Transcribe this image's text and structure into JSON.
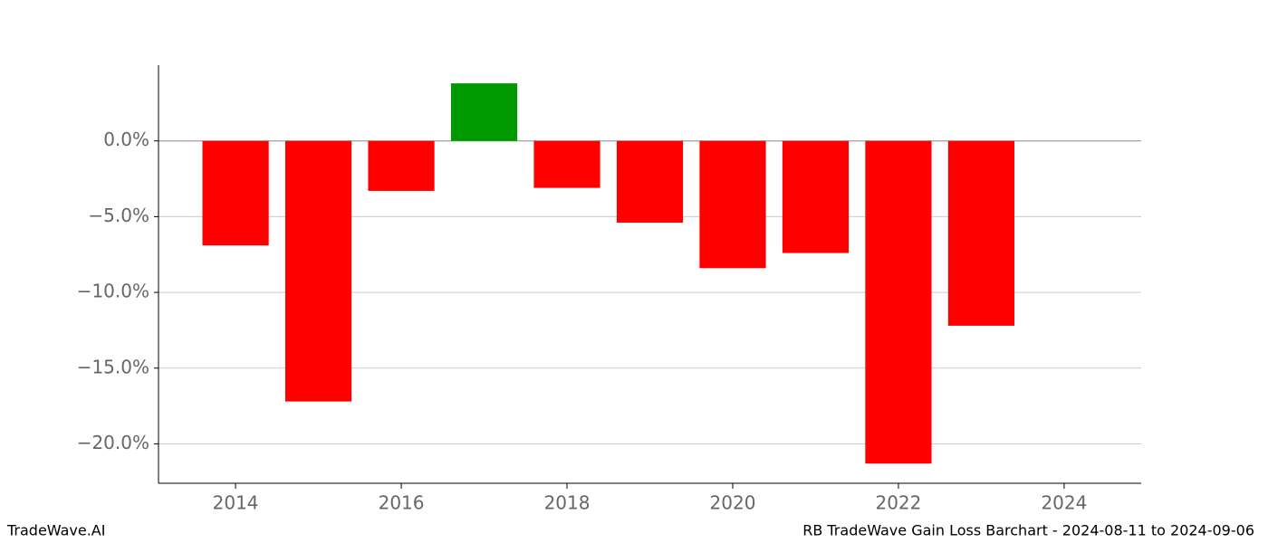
{
  "chart_data": {
    "type": "bar",
    "x": [
      2014,
      2015,
      2016,
      2017,
      2018,
      2019,
      2020,
      2021,
      2022,
      2023
    ],
    "values": [
      -6.9,
      -17.2,
      -3.3,
      3.8,
      -3.1,
      -5.4,
      -8.4,
      -7.4,
      -21.3,
      -12.2
    ],
    "colors": [
      "#ff0000",
      "#ff0000",
      "#ff0000",
      "#009900",
      "#ff0000",
      "#ff0000",
      "#ff0000",
      "#ff0000",
      "#ff0000",
      "#ff0000"
    ],
    "xlim": [
      2013.07,
      2024.93
    ],
    "xticks": [
      2014,
      2016,
      2018,
      2020,
      2022,
      2024
    ],
    "ylim": [
      -22.6,
      5.0
    ],
    "yticks": [
      {
        "value": 0,
        "label": "0.0%"
      },
      {
        "value": -5,
        "label": "−5.0%"
      },
      {
        "value": -10,
        "label": "−10.0%"
      },
      {
        "value": -15,
        "label": "−15.0%"
      },
      {
        "value": -20,
        "label": "−20.0%"
      }
    ],
    "grid": true,
    "footer_left": "TradeWave.AI",
    "footer_right": "RB TradeWave Gain Loss Barchart - 2024-08-11 to 2024-09-06"
  }
}
